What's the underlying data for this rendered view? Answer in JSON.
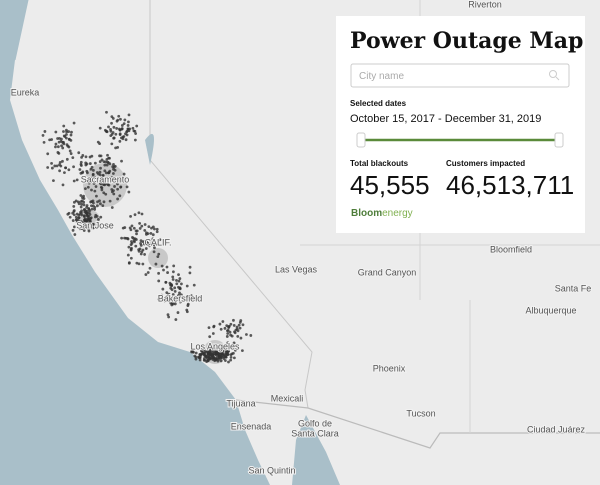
{
  "panel": {
    "title": "Power Outage Map",
    "search_placeholder": "City name",
    "dates_label": "Selected dates",
    "date_range": "October 15, 2017 - December 31, 2019",
    "stats": [
      {
        "label": "Total blackouts",
        "value": "45,555"
      },
      {
        "label": "Customers impacted",
        "value": "46,513,711"
      }
    ],
    "brand": [
      "Bloom",
      "energy"
    ]
  },
  "map": {
    "places": [
      {
        "label": "Riverton"
      },
      {
        "label": "Eureka"
      },
      {
        "label": "Sacramento"
      },
      {
        "label": "San Jose"
      },
      {
        "label": "CALIF."
      },
      {
        "label": "Las Vegas"
      },
      {
        "label": "Grand Canyon"
      },
      {
        "label": "Bloomfield"
      },
      {
        "label": "Santa Fe"
      },
      {
        "label": "Albuquerque"
      },
      {
        "label": "Bakersfield"
      },
      {
        "label": "Los Angeles"
      },
      {
        "label": "Phoenix"
      },
      {
        "label": "Tijuana"
      },
      {
        "label": "Mexicali"
      },
      {
        "label": "Ensenada"
      },
      {
        "label": "Golfo de"
      },
      {
        "label": "Santa Clara"
      },
      {
        "label": "Tucson"
      },
      {
        "label": "Ciudad Juárez"
      },
      {
        "label": "San Quintin"
      }
    ]
  }
}
